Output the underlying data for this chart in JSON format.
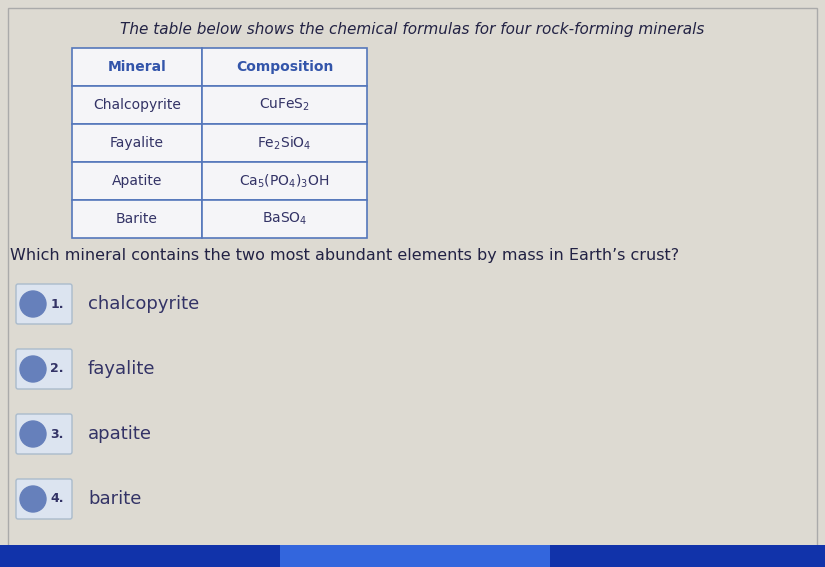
{
  "title": "The table below shows the chemical formulas for four rock-forming minerals",
  "question": "Which mineral contains the two most abundant elements by mass in Earth’s crust?",
  "table_headers": [
    "Mineral",
    "Composition"
  ],
  "table_rows": [
    [
      "Chalcopyrite",
      "CuFeS$_2$"
    ],
    [
      "Fayalite",
      "Fe$_2$SiO$_4$"
    ],
    [
      "Apatite",
      "Ca$_5$(PO$_4$)$_3$OH"
    ],
    [
      "Barite",
      "BaSO$_4$"
    ]
  ],
  "options": [
    {
      "num": "1.",
      "text": "chalcopyrite",
      "circle_color": "#6680bb",
      "box_color": "#dce4f0"
    },
    {
      "num": "2.",
      "text": "fayalite",
      "circle_color": "#6680bb",
      "box_color": "#dce4f0"
    },
    {
      "num": "3.",
      "text": "apatite",
      "circle_color": "#6680bb",
      "box_color": "#dce4f0"
    },
    {
      "num": "4.",
      "text": "barite",
      "circle_color": "#6680bb",
      "box_color": "#dce4f0"
    }
  ],
  "bg_color": "#dddad2",
  "outer_border_color": "#888888",
  "table_border_color": "#5577bb",
  "header_text_color": "#3355aa",
  "cell_bg": "#f5f5f8",
  "cell_text_color": "#333366",
  "title_color": "#222244",
  "question_color": "#222244",
  "option_text_color": "#333366",
  "blue_bar_color": "#2244bb",
  "bottom_bar_color": "#1133aa"
}
